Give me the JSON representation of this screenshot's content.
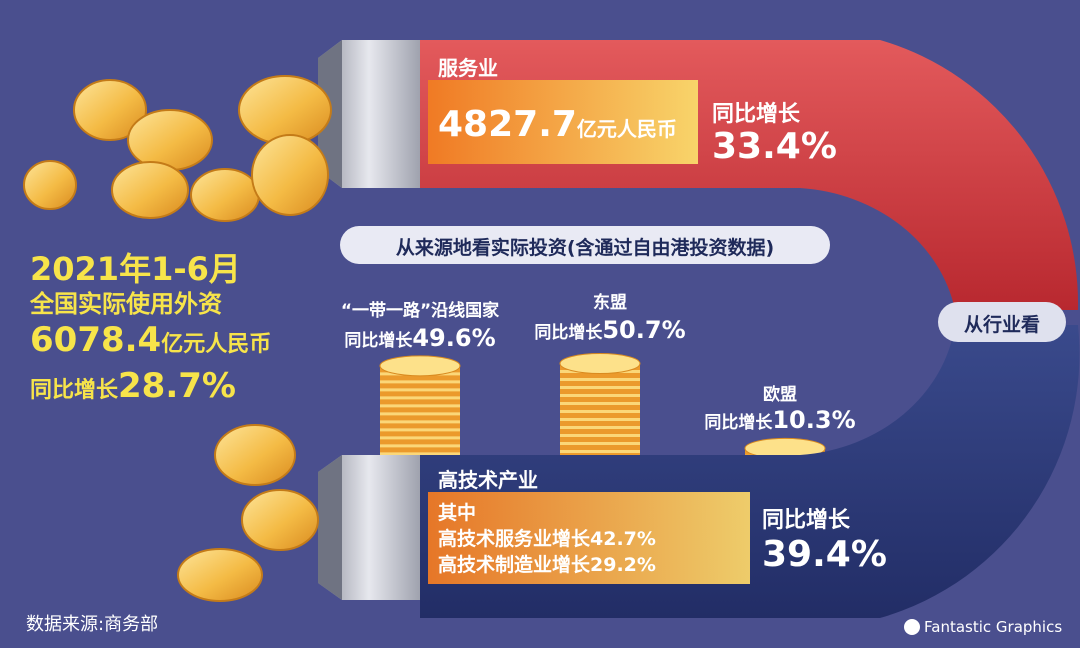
{
  "summary": {
    "period": "2021年1-6月",
    "subject": "全国实际使用外资",
    "amount_value": "6078.4",
    "amount_unit": "亿元人民币",
    "growth_label": "同比增长",
    "growth_value": "28.7%"
  },
  "industry_view_label": "从行业看",
  "services": {
    "title": "服务业",
    "amount_value": "4827.7",
    "amount_unit": "亿元人民币",
    "growth_label": "同比增长",
    "growth_value": "33.4%"
  },
  "hightech": {
    "title": "高技术产业",
    "detail_line1": "其中",
    "detail_line2": "高技术服务业增长42.7%",
    "detail_line3": "高技术制造业增长29.2%",
    "growth_label": "同比增长",
    "growth_value": "39.4%"
  },
  "source_view_label": "从来源地看实际投资(含通过自由港投资数据)",
  "chart_data": {
    "type": "bar",
    "categories": [
      "“一带一路”沿线国家",
      "东盟",
      "欧盟"
    ],
    "values": [
      49.6,
      50.7,
      10.3
    ],
    "value_label_prefix": "同比增长",
    "value_label_suffix": "%"
  },
  "source_note": "数据来源:商务部",
  "brand": "Fantastic Graphics",
  "colors": {
    "background": "#4a4f8e",
    "upper_arc": "#d9434a",
    "lower_arc": "#2c3a78",
    "highlight_yellow": "#f7e44a",
    "coin_gold": "#f2b53c"
  }
}
